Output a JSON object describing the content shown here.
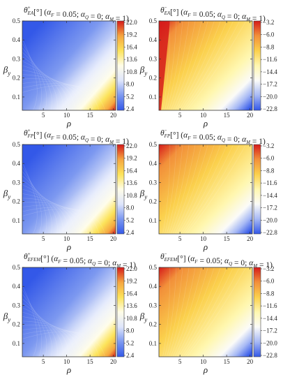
{
  "palettes": {
    "plus": [
      "#3358e8",
      "#7c98f0",
      "#dfe6fb",
      "#fffde8",
      "#fce35a",
      "#f5a640",
      "#d51a1a"
    ],
    "minus": [
      "#d51a1a",
      "#f2903a",
      "#fbd04c",
      "#fff7b0",
      "#fbfbf8",
      "#a7b9f5",
      "#3358e8"
    ]
  },
  "chart_data": [
    {
      "type": "heatmap",
      "title_symbol": "θ",
      "title_sub": "EA",
      "title_sup": "+",
      "title_rest": "[°] (α_F = 0.05; α_Q = 0; α_M = 1)",
      "xlabel": "ρ",
      "ylabel": "β_y",
      "xlim": [
        0.5,
        20.5
      ],
      "ylim": [
        0.03,
        0.5
      ],
      "xticks": [
        "5",
        "10",
        "15",
        "20"
      ],
      "yticks": [
        "0.5",
        "0.4",
        "0.3",
        "0.2",
        "0.1"
      ],
      "colorbar_ticks": [
        "22.0",
        "19.2",
        "16.4",
        "13.6",
        "10.8",
        "8.0",
        "5.2",
        "2.4"
      ],
      "clim": [
        2.4,
        22.0
      ],
      "palette": "plus"
    },
    {
      "type": "heatmap",
      "title_symbol": "θ",
      "title_sub": "EA",
      "title_sup": "−",
      "title_rest": "[°] (α_F = 0.05; α_Q = 0; α_M = 1)",
      "xlabel": "ρ",
      "ylabel": "β_y",
      "xlim": [
        0.5,
        20.5
      ],
      "ylim": [
        0.03,
        0.5
      ],
      "xticks": [
        "5",
        "10",
        "15",
        "20"
      ],
      "yticks": [
        "0.5",
        "0.4",
        "0.3",
        "0.2",
        "0.1"
      ],
      "colorbar_ticks": [
        "−3.2",
        "−6.0",
        "−8.8",
        "−11.6",
        "−14.4",
        "−17.2",
        "−20.0",
        "−22.8"
      ],
      "clim": [
        -22.8,
        -3.2
      ],
      "palette": "minus"
    },
    {
      "type": "heatmap",
      "title_symbol": "θ",
      "title_sub": "FP",
      "title_sup": "+",
      "title_rest": "[°] (α_F = 0.05; α_Q = 0; α_M = 1)",
      "xlabel": "ρ",
      "ylabel": "β_y",
      "xlim": [
        0.5,
        20.5
      ],
      "ylim": [
        0.03,
        0.5
      ],
      "xticks": [
        "5",
        "10",
        "15",
        "20"
      ],
      "yticks": [
        "0.5",
        "0.4",
        "0.3",
        "0.2",
        "0.1"
      ],
      "colorbar_ticks": [
        "22.0",
        "19.2",
        "16.4",
        "13.6",
        "10.8",
        "8.0",
        "5.2",
        "2.4"
      ],
      "clim": [
        2.4,
        22.0
      ],
      "palette": "plus"
    },
    {
      "type": "heatmap",
      "title_symbol": "θ",
      "title_sub": "FP",
      "title_sup": "−",
      "title_rest": "[°] (α_F = 0.05; α_Q = 0; α_M = 1)",
      "xlabel": "ρ",
      "ylabel": "β_y",
      "xlim": [
        0.5,
        20.5
      ],
      "ylim": [
        0.03,
        0.5
      ],
      "xticks": [
        "5",
        "10",
        "15",
        "20"
      ],
      "yticks": [
        "0.5",
        "0.4",
        "0.3",
        "0.2",
        "0.1"
      ],
      "colorbar_ticks": [
        "−3.2",
        "−6.0",
        "−8.8",
        "−11.6",
        "−14.4",
        "−17.2",
        "−20.0",
        "−22.8"
      ],
      "clim": [
        -22.8,
        -3.2
      ],
      "palette": "minus"
    },
    {
      "type": "heatmap",
      "title_symbol": "θ",
      "title_sub": "EFEM",
      "title_sup": "+",
      "title_rest": "[°] (α_F = 0.05; α_Q = 0; α_M = 1)",
      "xlabel": "ρ",
      "ylabel": "β_y",
      "xlim": [
        0.5,
        20.5
      ],
      "ylim": [
        0.03,
        0.5
      ],
      "xticks": [
        "5",
        "10",
        "15",
        "20"
      ],
      "yticks": [
        "0.5",
        "0.4",
        "0.3",
        "0.2",
        "0.1"
      ],
      "colorbar_ticks": [
        "22.0",
        "19.2",
        "16.4",
        "13.6",
        "10.8",
        "8.0",
        "5.2",
        "2.4"
      ],
      "clim": [
        2.4,
        22.0
      ],
      "palette": "plus"
    },
    {
      "type": "heatmap",
      "title_symbol": "θ",
      "title_sub": "EFEM",
      "title_sup": "−",
      "title_rest": "[°] (α_F = 0.05; α_Q = 0; α_M = 1)",
      "xlabel": "ρ",
      "ylabel": "β_y",
      "xlim": [
        0.5,
        20.5
      ],
      "ylim": [
        0.03,
        0.5
      ],
      "xticks": [
        "5",
        "10",
        "15",
        "20"
      ],
      "yticks": [
        "0.5",
        "0.4",
        "0.3",
        "0.2",
        "0.1"
      ],
      "colorbar_ticks": [
        "−3.2",
        "−6.0",
        "−8.8",
        "−11.6",
        "−14.4",
        "−17.2",
        "−20.0",
        "−22.8"
      ],
      "clim": [
        -22.8,
        -3.2
      ],
      "palette": "minus"
    }
  ]
}
